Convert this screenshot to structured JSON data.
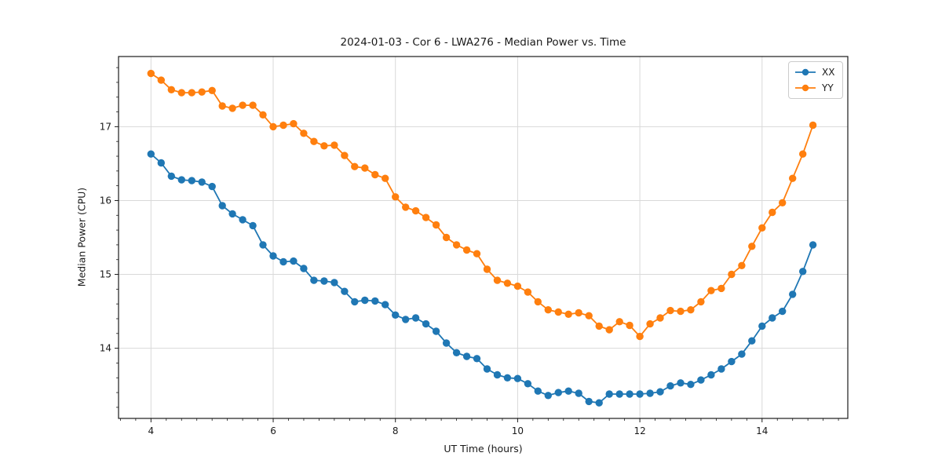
{
  "page": {
    "background": "#ffffff"
  },
  "chart_data": {
    "type": "line",
    "title": "2024-01-03 - Cor 6 - LWA276 - Median Power vs. Time",
    "xlabel": "UT Time (hours)",
    "ylabel": "Median Power (CPU)",
    "xlim": [
      3.469,
      15.403
    ],
    "ylim": [
      13.05,
      17.95
    ],
    "xticks": [
      4,
      6,
      8,
      10,
      12,
      14
    ],
    "yticks": [
      14,
      15,
      16,
      17
    ],
    "minor_xtick_step": 0.25,
    "minor_ytick_step": 0.2,
    "grid": "major",
    "grid_color": "#d9d9d9",
    "axis_color": "#1a1a1a",
    "legend_position": "upper right",
    "marker": "circle",
    "x": [
      4,
      4.167,
      4.333,
      4.5,
      4.667,
      4.833,
      5,
      5.167,
      5.333,
      5.5,
      5.667,
      5.833,
      6,
      6.167,
      6.333,
      6.5,
      6.667,
      6.833,
      7,
      7.167,
      7.333,
      7.5,
      7.667,
      7.833,
      8,
      8.167,
      8.333,
      8.5,
      8.667,
      8.833,
      9,
      9.167,
      9.333,
      9.5,
      9.667,
      9.833,
      10,
      10.167,
      10.333,
      10.5,
      10.667,
      10.833,
      11,
      11.167,
      11.333,
      11.5,
      11.667,
      11.833,
      12,
      12.167,
      12.333,
      12.5,
      12.667,
      12.833,
      13,
      13.167,
      13.333,
      13.5,
      13.667,
      13.833,
      14,
      14.167,
      14.333,
      14.5,
      14.667,
      14.833
    ],
    "series": [
      {
        "name": "XX",
        "color": "#1f77b4",
        "values": [
          16.63,
          16.51,
          16.33,
          16.28,
          16.27,
          16.25,
          16.19,
          15.93,
          15.82,
          15.74,
          15.66,
          15.4,
          15.25,
          15.17,
          15.18,
          15.08,
          14.92,
          14.91,
          14.89,
          14.77,
          14.63,
          14.65,
          14.64,
          14.59,
          14.45,
          14.39,
          14.41,
          14.33,
          14.23,
          14.07,
          13.94,
          13.89,
          13.86,
          13.72,
          13.64,
          13.6,
          13.59,
          13.52,
          13.42,
          13.36,
          13.4,
          13.42,
          13.39,
          13.28,
          13.26,
          13.38,
          13.38,
          13.38,
          13.38,
          13.39,
          13.41,
          13.49,
          13.53,
          13.51,
          13.57,
          13.64,
          13.72,
          13.82,
          13.92,
          14.1,
          14.3,
          14.41,
          14.5,
          14.73,
          15.04,
          15.4
        ]
      },
      {
        "name": "YY",
        "color": "#ff7f0e",
        "values": [
          17.72,
          17.63,
          17.5,
          17.46,
          17.46,
          17.47,
          17.49,
          17.28,
          17.25,
          17.29,
          17.29,
          17.16,
          17.0,
          17.02,
          17.04,
          16.91,
          16.8,
          16.74,
          16.75,
          16.61,
          16.46,
          16.44,
          16.35,
          16.3,
          16.05,
          15.91,
          15.86,
          15.77,
          15.67,
          15.5,
          15.4,
          15.33,
          15.28,
          15.07,
          14.92,
          14.88,
          14.84,
          14.76,
          14.63,
          14.52,
          14.49,
          14.46,
          14.48,
          14.44,
          14.3,
          14.25,
          14.36,
          14.31,
          14.16,
          14.33,
          14.41,
          14.51,
          14.5,
          14.52,
          14.63,
          14.78,
          14.81,
          15.0,
          15.12,
          15.38,
          15.63,
          15.84,
          15.97,
          16.3,
          16.63,
          17.02
        ]
      }
    ]
  }
}
